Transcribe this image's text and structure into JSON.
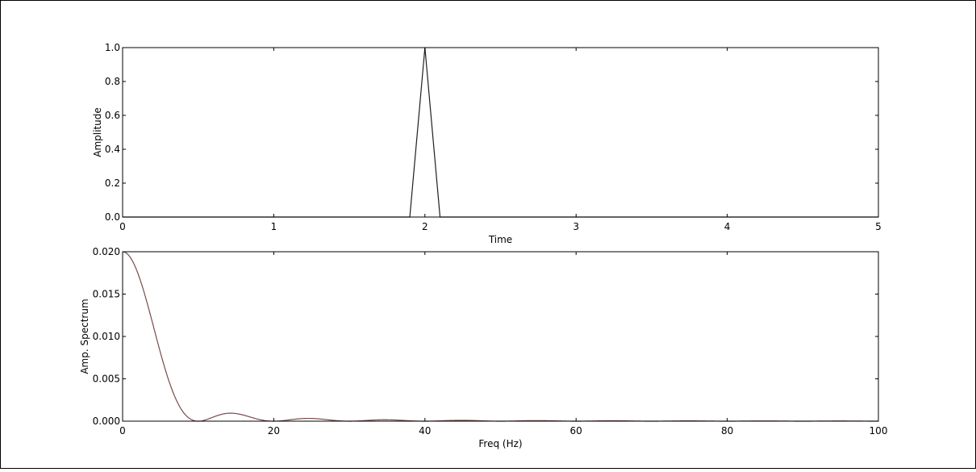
{
  "chart_data": [
    {
      "type": "line",
      "title": "",
      "xlabel": "Time",
      "ylabel": "Amplitude",
      "xlim": [
        0,
        5
      ],
      "ylim": [
        0,
        1.0
      ],
      "xticks": [
        "0",
        "1",
        "2",
        "3",
        "4",
        "5"
      ],
      "yticks": [
        "0.0",
        "0.2",
        "0.4",
        "0.6",
        "0.8",
        "1.0"
      ],
      "grid": false,
      "series": [
        {
          "color": "#1f1f1f",
          "x": [
            0,
            1.9,
            2.0,
            2.1,
            5
          ],
          "y": [
            0,
            0,
            1.0,
            0,
            0
          ]
        }
      ]
    },
    {
      "type": "line",
      "title": "",
      "xlabel": "Freq (Hz)",
      "ylabel": "Amp. Spectrum",
      "xlim": [
        0,
        100
      ],
      "ylim": [
        0,
        0.02
      ],
      "xticks": [
        "0",
        "20",
        "40",
        "60",
        "80",
        "100"
      ],
      "yticks": [
        "0.000",
        "0.005",
        "0.010",
        "0.015",
        "0.020"
      ],
      "grid": false,
      "series": [
        {
          "color": "#7a4a4a",
          "function": "0.02*sinc(f/10)^2"
        }
      ]
    }
  ]
}
